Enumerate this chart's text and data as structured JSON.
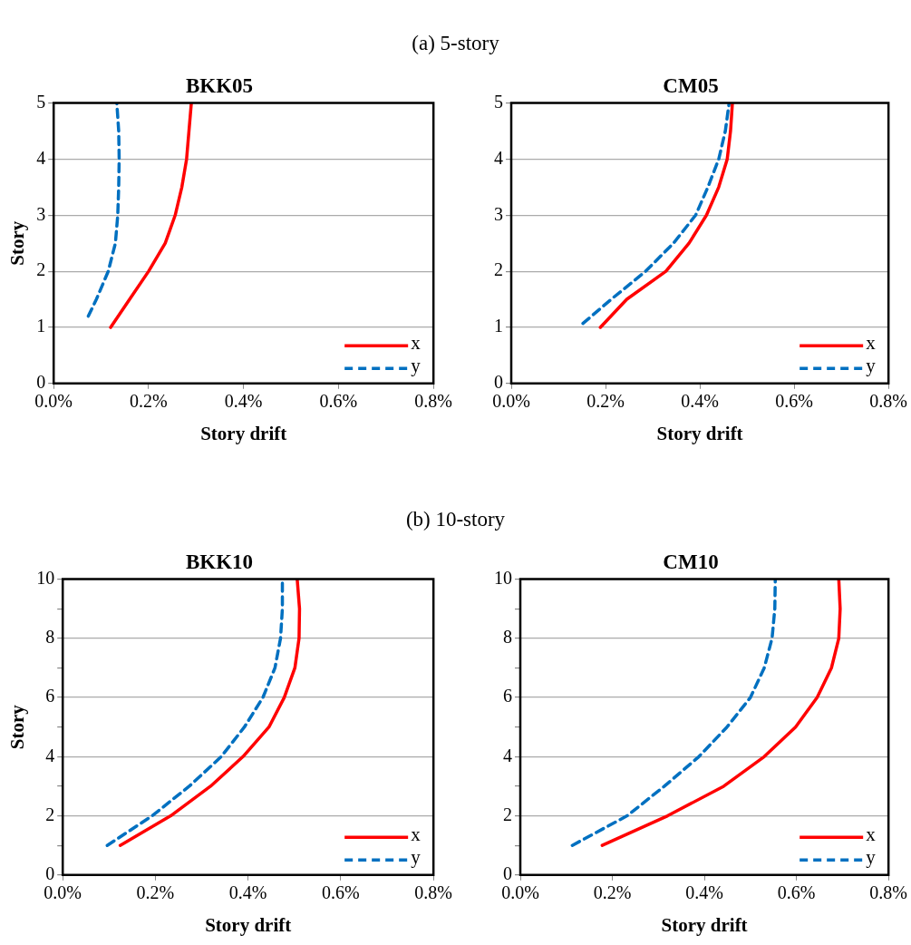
{
  "chart_data": [
    {
      "type": "line",
      "title": "BKK05",
      "annotations": [
        "(a) 5-story"
      ],
      "xlabel": "Story drift",
      "ylabel": "Story",
      "xlim": [
        0,
        0.8
      ],
      "xticks": [
        {
          "value": 0,
          "label": "0.0%"
        },
        {
          "value": 0.2,
          "label": "0.2%"
        },
        {
          "value": 0.4,
          "label": "0.4%"
        },
        {
          "value": 0.6,
          "label": "0.6%"
        },
        {
          "value": 0.8,
          "label": "0.8%"
        }
      ],
      "ylim": [
        0,
        5
      ],
      "yticks": [
        0,
        1,
        2,
        3,
        4,
        5
      ],
      "grid": "y",
      "legend": "bottom right",
      "marker": "none",
      "series": [
        {
          "name": "x",
          "color": "#ff0000",
          "line_style": "solid",
          "x": [
            0.12,
            0.16,
            0.2,
            0.235,
            0.256,
            0.27,
            0.28,
            0.285,
            0.29
          ],
          "values": [
            1,
            1.5,
            2,
            2.5,
            3,
            3.5,
            4,
            4.5,
            5
          ]
        },
        {
          "name": "y",
          "color": "#0070c0",
          "line_style": "dashed",
          "x": [
            0.073,
            0.09,
            0.115,
            0.13,
            0.135,
            0.137,
            0.138,
            0.137,
            0.133
          ],
          "values": [
            1.2,
            1.5,
            2,
            2.5,
            3,
            3.5,
            4,
            4.5,
            5
          ]
        }
      ]
    },
    {
      "type": "line",
      "title": "CM05",
      "xlabel": "Story drift",
      "xlim": [
        0,
        0.8
      ],
      "xticks": [
        {
          "value": 0,
          "label": "0.0%"
        },
        {
          "value": 0.2,
          "label": "0.2%"
        },
        {
          "value": 0.4,
          "label": "0.4%"
        },
        {
          "value": 0.6,
          "label": "0.6%"
        },
        {
          "value": 0.8,
          "label": "0.8%"
        }
      ],
      "ylim": [
        0,
        5
      ],
      "yticks": [
        0,
        1,
        2,
        3,
        4,
        5
      ],
      "grid": "y",
      "legend": "bottom right",
      "marker": "none",
      "series": [
        {
          "name": "x",
          "color": "#ff0000",
          "line_style": "solid",
          "x": [
            0.189,
            0.245,
            0.328,
            0.377,
            0.414,
            0.44,
            0.458,
            0.465,
            0.469
          ],
          "values": [
            1,
            1.5,
            2,
            2.5,
            3,
            3.5,
            4,
            4.5,
            5
          ]
        },
        {
          "name": "y",
          "color": "#0070c0",
          "line_style": "dashed",
          "x": [
            0.152,
            0.212,
            0.285,
            0.344,
            0.391,
            0.417,
            0.44,
            0.454,
            0.462
          ],
          "values": [
            1.07,
            1.5,
            2,
            2.5,
            3,
            3.5,
            4,
            4.5,
            5
          ]
        }
      ]
    },
    {
      "type": "line",
      "title": "BKK10",
      "annotations": [
        "(b) 10-story"
      ],
      "xlabel": "Story drift",
      "ylabel": "Story",
      "xlim": [
        0,
        0.8
      ],
      "xticks": [
        {
          "value": 0,
          "label": "0.0%"
        },
        {
          "value": 0.2,
          "label": "0.2%"
        },
        {
          "value": 0.4,
          "label": "0.4%"
        },
        {
          "value": 0.6,
          "label": "0.6%"
        },
        {
          "value": 0.8,
          "label": "0.8%"
        }
      ],
      "ylim": [
        0,
        10
      ],
      "yticks": [
        0,
        {
          "value": 1,
          "label": null
        },
        2,
        {
          "value": 3,
          "label": null
        },
        4,
        {
          "value": 5,
          "label": null
        },
        6,
        {
          "value": 7,
          "label": null
        },
        8,
        {
          "value": 9,
          "label": null
        },
        10
      ],
      "grid": "y",
      "legend": "bottom right",
      "marker": "none",
      "series": [
        {
          "name": "x",
          "color": "#ff0000",
          "line_style": "solid",
          "x": [
            0.124,
            0.233,
            0.319,
            0.389,
            0.445,
            0.478,
            0.501,
            0.51,
            0.511,
            0.506
          ],
          "values": [
            1,
            2,
            3,
            4,
            5,
            6,
            7,
            8,
            9,
            10
          ]
        },
        {
          "name": "y",
          "color": "#0070c0",
          "line_style": "dashed",
          "x": [
            0.096,
            0.193,
            0.273,
            0.342,
            0.392,
            0.432,
            0.458,
            0.47,
            0.474,
            0.474
          ],
          "values": [
            1,
            2,
            3,
            4,
            5,
            6,
            7,
            8,
            9,
            10
          ]
        }
      ]
    },
    {
      "type": "line",
      "title": "CM10",
      "xlabel": "Story drift",
      "xlim": [
        0,
        0.8
      ],
      "xticks": [
        {
          "value": 0,
          "label": "0.0%"
        },
        {
          "value": 0.2,
          "label": "0.2%"
        },
        {
          "value": 0.4,
          "label": "0.4%"
        },
        {
          "value": 0.6,
          "label": "0.6%"
        },
        {
          "value": 0.8,
          "label": "0.8%"
        }
      ],
      "ylim": [
        0,
        10
      ],
      "yticks": [
        0,
        {
          "value": 1,
          "label": null
        },
        2,
        {
          "value": 3,
          "label": null
        },
        4,
        {
          "value": 5,
          "label": null
        },
        6,
        {
          "value": 7,
          "label": null
        },
        8,
        {
          "value": 9,
          "label": null
        },
        10
      ],
      "grid": "y",
      "legend": "bottom right",
      "marker": "none",
      "series": [
        {
          "name": "x",
          "color": "#ff0000",
          "line_style": "solid",
          "x": [
            0.178,
            0.32,
            0.442,
            0.53,
            0.598,
            0.645,
            0.676,
            0.692,
            0.695,
            0.692
          ],
          "values": [
            1,
            2,
            3,
            4,
            5,
            6,
            7,
            8,
            9,
            10
          ]
        },
        {
          "name": "y",
          "color": "#0070c0",
          "line_style": "dashed",
          "x": [
            0.113,
            0.232,
            0.313,
            0.388,
            0.449,
            0.5,
            0.53,
            0.547,
            0.553,
            0.554
          ],
          "values": [
            1,
            2,
            3,
            4,
            5,
            6,
            7,
            8,
            9,
            10
          ]
        }
      ]
    }
  ]
}
